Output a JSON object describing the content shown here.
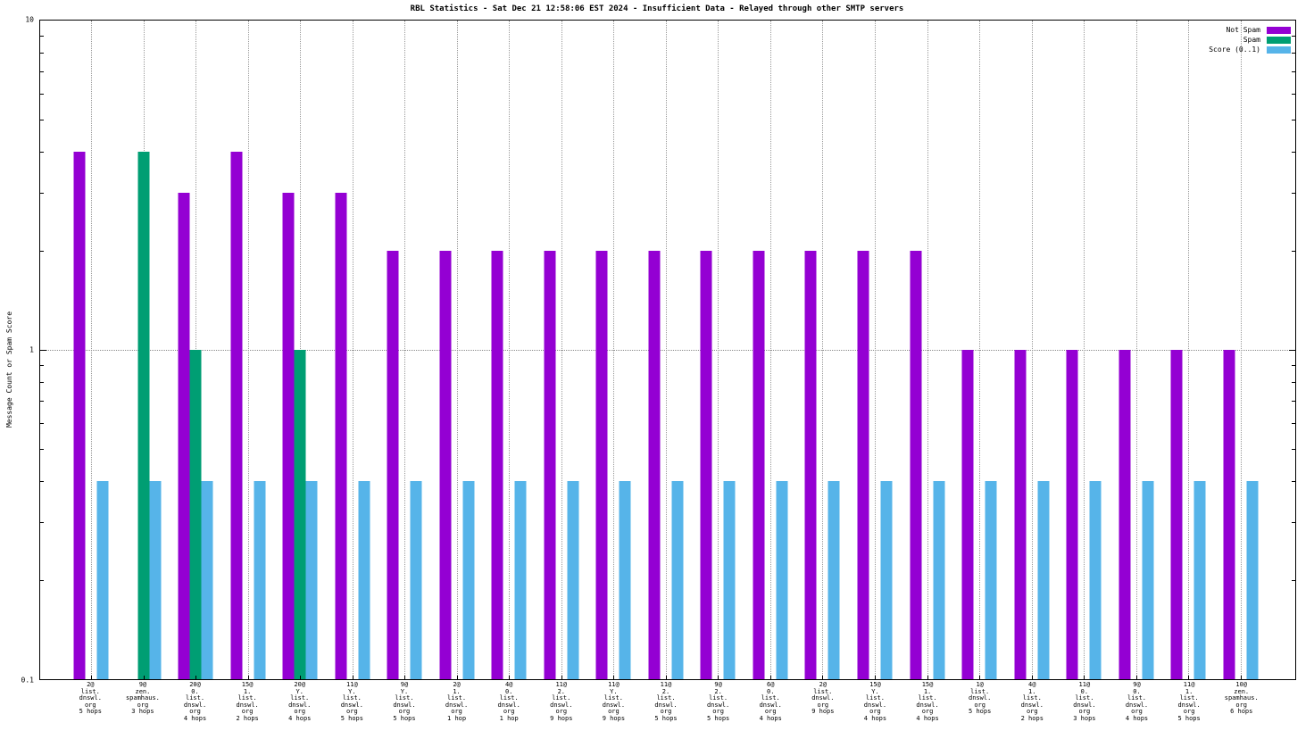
{
  "title": "RBL Statistics - Sat Dec 21 12:58:06 EST 2024 - Insufficient Data - Relayed through other SMTP servers",
  "ylabel": "Message Count or Spam Score",
  "legend": [
    {
      "label": "Not Spam",
      "color": "#9400d3"
    },
    {
      "label": "Spam",
      "color": "#009e73"
    },
    {
      "label": "Score (0..1)",
      "color": "#56b4e9"
    }
  ],
  "chart_data": {
    "type": "bar",
    "scale": "log",
    "title": "RBL Statistics - Sat Dec 21 12:58:06 EST 2024 - Insufficient Data - Relayed through other SMTP servers",
    "xlabel": "",
    "ylabel": "Message Count or Spam Score",
    "ylim": [
      0.1,
      10
    ],
    "yticks": [
      10,
      1,
      0.1
    ],
    "grid": true,
    "legend_position": "top-right",
    "categories": [
      [
        "2@",
        "list.",
        "dnswl.",
        "org",
        "5 hops"
      ],
      [
        "9@",
        "zen.",
        "spamhaus.",
        "org",
        "3 hops"
      ],
      [
        "20@",
        "0.",
        "list.",
        "dnswl.",
        "org",
        "4 hops"
      ],
      [
        "15@",
        "1.",
        "list.",
        "dnswl.",
        "org",
        "2 hops"
      ],
      [
        "20@",
        "Y.",
        "list.",
        "dnswl.",
        "org",
        "4 hops"
      ],
      [
        "11@",
        "Y.",
        "list.",
        "dnswl.",
        "org",
        "5 hops"
      ],
      [
        "9@",
        "Y.",
        "list.",
        "dnswl.",
        "org",
        "5 hops"
      ],
      [
        "2@",
        "1.",
        "list.",
        "dnswl.",
        "org",
        "1 hop"
      ],
      [
        "4@",
        "0.",
        "list.",
        "dnswl.",
        "org",
        "1 hop"
      ],
      [
        "11@",
        "2.",
        "list.",
        "dnswl.",
        "org",
        "9 hops"
      ],
      [
        "11@",
        "Y.",
        "list.",
        "dnswl.",
        "org",
        "9 hops"
      ],
      [
        "11@",
        "2.",
        "list.",
        "dnswl.",
        "org",
        "5 hops"
      ],
      [
        "9@",
        "2.",
        "list.",
        "dnswl.",
        "org",
        "5 hops"
      ],
      [
        "6@",
        "0.",
        "list.",
        "dnswl.",
        "org",
        "4 hops"
      ],
      [
        "2@",
        "list.",
        "dnswl.",
        "org",
        "9 hops"
      ],
      [
        "15@",
        "Y.",
        "list.",
        "dnswl.",
        "org",
        "4 hops"
      ],
      [
        "15@",
        "1.",
        "list.",
        "dnswl.",
        "org",
        "4 hops"
      ],
      [
        "1@",
        "list.",
        "dnswl.",
        "org",
        "5 hops"
      ],
      [
        "4@",
        "1.",
        "list.",
        "dnswl.",
        "org",
        "2 hops"
      ],
      [
        "11@",
        "0.",
        "list.",
        "dnswl.",
        "org",
        "3 hops"
      ],
      [
        "9@",
        "0.",
        "list.",
        "dnswl.",
        "org",
        "4 hops"
      ],
      [
        "11@",
        "1.",
        "list.",
        "dnswl.",
        "org",
        "5 hops"
      ],
      [
        "10@",
        "zen.",
        "spamhaus.",
        "org",
        "6 hops"
      ]
    ],
    "series": [
      {
        "name": "Not Spam",
        "color": "#9400d3",
        "values": [
          4,
          0,
          3,
          4,
          3,
          3,
          2,
          2,
          2,
          2,
          2,
          2,
          2,
          2,
          2,
          2,
          2,
          1,
          1,
          1,
          1,
          1,
          1
        ]
      },
      {
        "name": "Spam",
        "color": "#009e73",
        "values": [
          0,
          4,
          1,
          0,
          1,
          0,
          0,
          0,
          0,
          0,
          0,
          0,
          0,
          0,
          0,
          0,
          0,
          0,
          0,
          0,
          0,
          0,
          0
        ]
      },
      {
        "name": "Score (0..1)",
        "color": "#56b4e9",
        "values": [
          0.4,
          0.4,
          0.4,
          0.4,
          0.4,
          0.4,
          0.4,
          0.4,
          0.4,
          0.4,
          0.4,
          0.4,
          0.4,
          0.4,
          0.4,
          0.4,
          0.4,
          0.4,
          0.4,
          0.4,
          0.4,
          0.4,
          0.4
        ]
      }
    ]
  }
}
